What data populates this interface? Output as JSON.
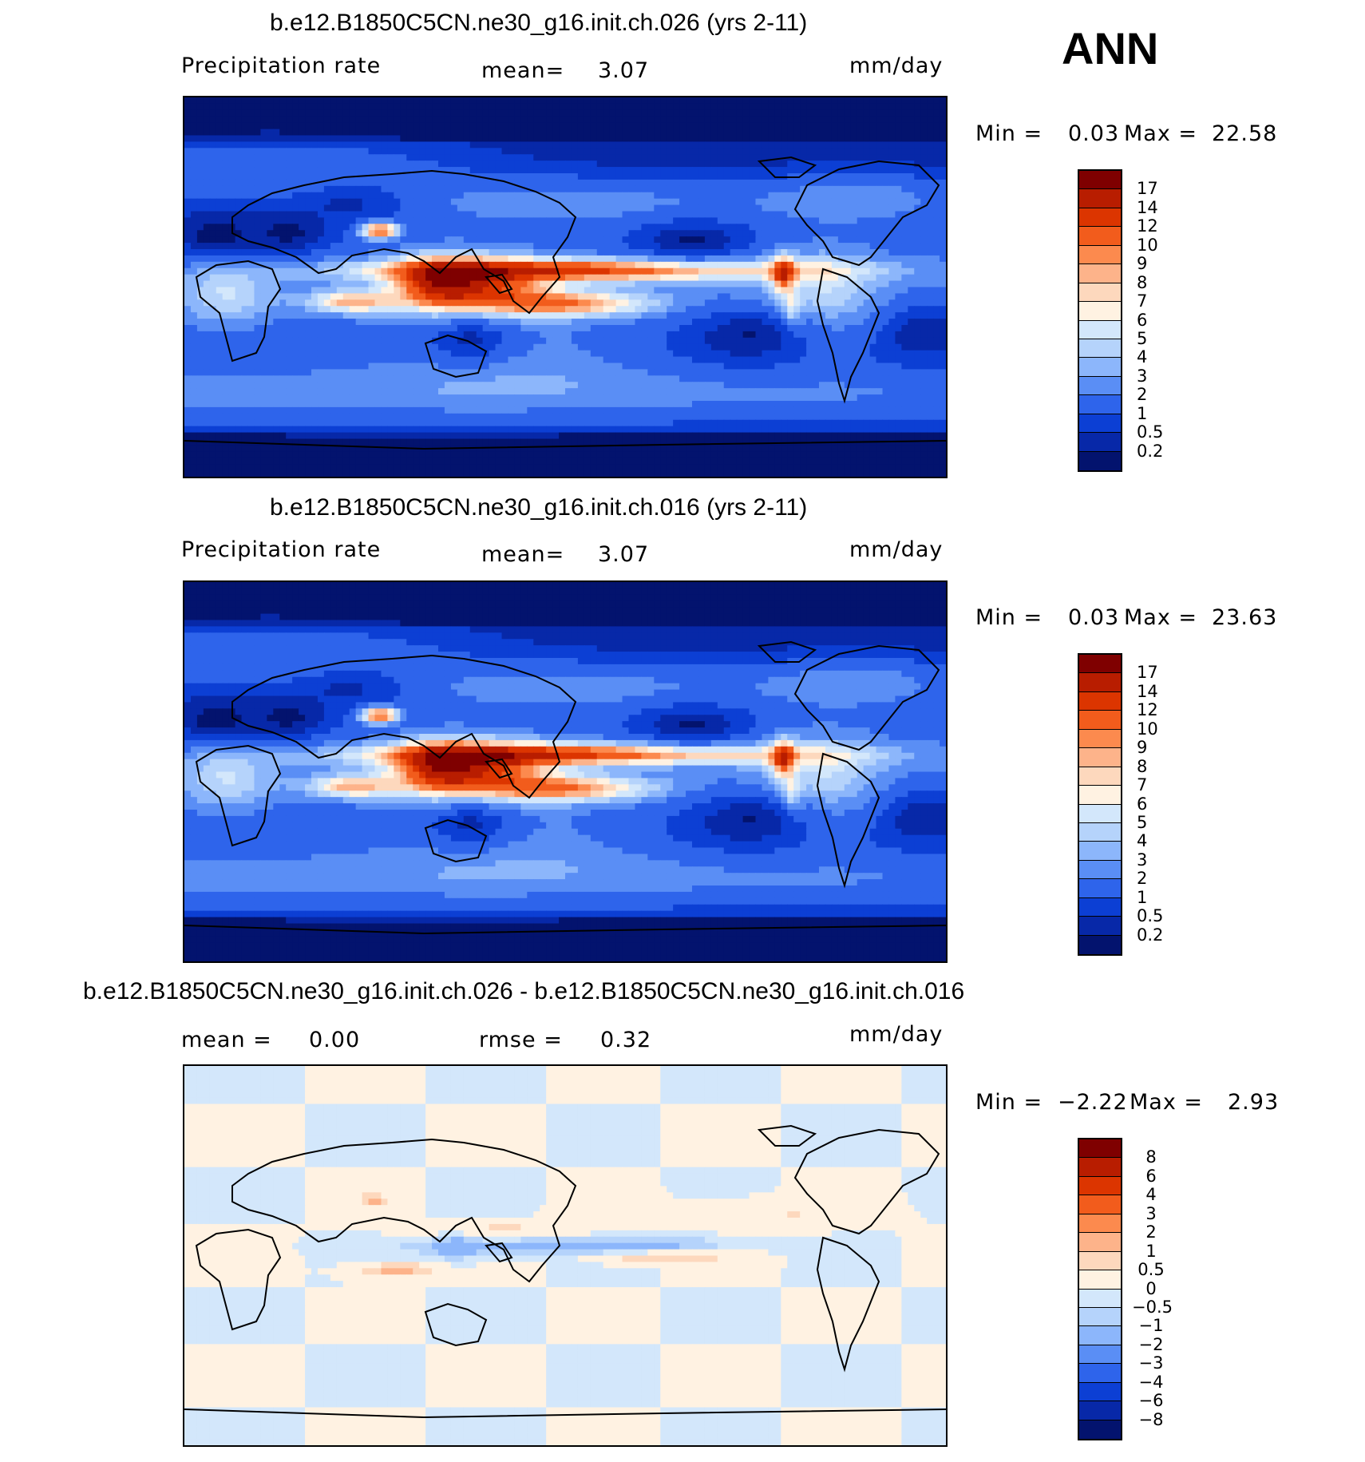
{
  "page_tag": "ANN",
  "chart_data": [
    {
      "type": "heatmap",
      "title": "b.e12.B1850C5CN.ne30_g16.init.ch.026 (yrs 2-11)",
      "left_label": "Precipitation rate",
      "stat_label": "mean=",
      "stat_value": "3.07",
      "units": "mm/day",
      "min_label": "Min =",
      "min_value": "0.03",
      "max_label": "Max =",
      "max_value": "22.58",
      "levels": [
        "17",
        "14",
        "12",
        "10",
        "9",
        "8",
        "7",
        "6",
        "5",
        "4",
        "3",
        "2",
        "1",
        "0.5",
        "0.2"
      ],
      "colors": [
        "#7f0000",
        "#b81d00",
        "#dc3500",
        "#f25c1c",
        "#fc8a4e",
        "#fdb38a",
        "#fdd8bd",
        "#fff2e2",
        "#d3e7fb",
        "#b5d3fb",
        "#8cb6fb",
        "#5a8ef5",
        "#2e64eb",
        "#0c3fd4",
        "#0728a8",
        "#03136e"
      ],
      "x_range": [
        0,
        360
      ],
      "y_range": [
        -90,
        90
      ]
    },
    {
      "type": "heatmap",
      "title": "b.e12.B1850C5CN.ne30_g16.init.ch.016 (yrs 2-11)",
      "left_label": "Precipitation rate",
      "stat_label": "mean=",
      "stat_value": "3.07",
      "units": "mm/day",
      "min_label": "Min =",
      "min_value": "0.03",
      "max_label": "Max =",
      "max_value": "23.63",
      "levels": [
        "17",
        "14",
        "12",
        "10",
        "9",
        "8",
        "7",
        "6",
        "5",
        "4",
        "3",
        "2",
        "1",
        "0.5",
        "0.2"
      ],
      "colors": [
        "#7f0000",
        "#b81d00",
        "#dc3500",
        "#f25c1c",
        "#fc8a4e",
        "#fdb38a",
        "#fdd8bd",
        "#fff2e2",
        "#d3e7fb",
        "#b5d3fb",
        "#8cb6fb",
        "#5a8ef5",
        "#2e64eb",
        "#0c3fd4",
        "#0728a8",
        "#03136e"
      ],
      "x_range": [
        0,
        360
      ],
      "y_range": [
        -90,
        90
      ]
    },
    {
      "type": "heatmap",
      "title": "b.e12.B1850C5CN.ne30_g16.init.ch.026 - b.e12.B1850C5CN.ne30_g16.init.ch.016",
      "left_label": "mean =",
      "left_value": "0.00",
      "stat_label": "rmse =",
      "stat_value": "0.32",
      "units": "mm/day",
      "min_label": "Min =",
      "min_value": "−2.22",
      "max_label": "Max =",
      "max_value": "2.93",
      "levels": [
        "8",
        "6",
        "4",
        "3",
        "2",
        "1",
        "0.5",
        "0",
        "−0.5",
        "−1",
        "−2",
        "−3",
        "−4",
        "−6",
        "−8"
      ],
      "colors": [
        "#7f0000",
        "#b81d00",
        "#dc3500",
        "#f25c1c",
        "#fc8a4e",
        "#fdb38a",
        "#fdd8bd",
        "#fff2e2",
        "#d3e7fb",
        "#b5d3fb",
        "#8cb6fb",
        "#5a8ef5",
        "#2e64eb",
        "#0c3fd4",
        "#0728a8",
        "#03136e"
      ],
      "x_range": [
        0,
        360
      ],
      "y_range": [
        -90,
        90
      ]
    }
  ]
}
